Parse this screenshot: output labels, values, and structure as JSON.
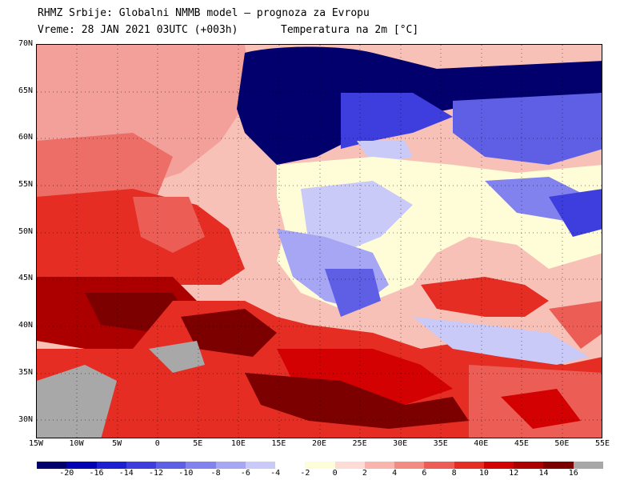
{
  "title_line1": "RHMZ Srbije: Globalni NMMB model — prognoza za Evropu",
  "title_line2": "Vreme: 28 JAN 2021 03UTC (+003h)",
  "subtitle": "Temperatura na 2m [°C]",
  "map": {
    "lon_min": -15,
    "lon_max": 55,
    "lat_min": 28,
    "lat_max": 70,
    "lat_labels": [
      "70N",
      "65N",
      "60N",
      "55N",
      "50N",
      "45N",
      "40N",
      "35N",
      "30N"
    ],
    "lat_values": [
      70,
      65,
      60,
      55,
      50,
      45,
      40,
      35,
      30
    ],
    "lon_labels": [
      "15W",
      "10W",
      "5W",
      "0",
      "5E",
      "10E",
      "15E",
      "20E",
      "25E",
      "30E",
      "35E",
      "40E",
      "45E",
      "50E",
      "55E"
    ],
    "lon_values": [
      -15,
      -10,
      -5,
      0,
      5,
      10,
      15,
      20,
      25,
      30,
      35,
      40,
      45,
      50,
      55
    ]
  },
  "legend": {
    "labels": [
      "-20",
      "-16",
      "-14",
      "-12",
      "-10",
      "-8",
      "-6",
      "-4",
      "-2",
      "0",
      "2",
      "4",
      "6",
      "8",
      "10",
      "12",
      "14",
      "16"
    ],
    "colors": [
      "#01006c",
      "#0000b4",
      "#1f1fd2",
      "#3e3ede",
      "#5f5fe6",
      "#8282ee",
      "#a6a6f4",
      "#cacaf8",
      "#ffffff",
      "#fffdd7",
      "#fddcd7",
      "#f8b4ad",
      "#f28b82",
      "#ec5e55",
      "#e52d24",
      "#d30101",
      "#ac0000",
      "#7d0000",
      "#a8a8a8"
    ]
  }
}
